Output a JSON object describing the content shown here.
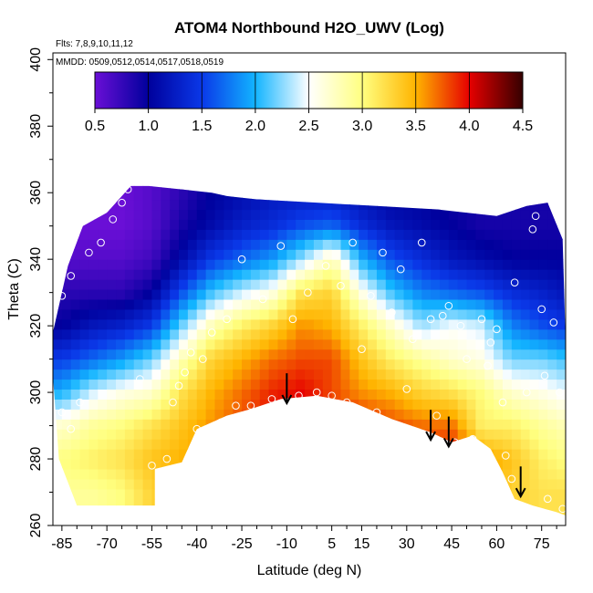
{
  "chart_data": {
    "type": "heatmap",
    "title": "ATOM4 Northbound H2O_UWV (Log)",
    "flights_label": "Flts: 7,8,9,10,11,12",
    "dates_label": "MMDD: 0509,0512,0514,0517,0518,0519",
    "xlabel": "Latitude (deg N)",
    "ylabel": "Theta (C)",
    "xlim": [
      -88,
      83
    ],
    "ylim": [
      260,
      402
    ],
    "xticks": [
      -85,
      -70,
      -55,
      -40,
      -25,
      -10,
      5,
      15,
      30,
      45,
      60,
      75
    ],
    "xtick_labels": [
      "-85",
      "-70",
      "-55",
      "-40",
      "-25",
      "-10",
      "5",
      "15",
      "30",
      "45",
      "60",
      "75"
    ],
    "yticks": [
      260,
      280,
      300,
      320,
      340,
      360,
      380,
      400
    ],
    "ytick_labels": [
      "260",
      "280",
      "300",
      "320",
      "340",
      "360",
      "380",
      "400"
    ],
    "colorbar": {
      "min": 0.5,
      "max": 4.5,
      "ticks": [
        0.5,
        1.0,
        1.5,
        2.0,
        2.5,
        3.0,
        3.5,
        4.0,
        4.5
      ],
      "tick_labels": [
        "0.5",
        "1.0",
        "1.5",
        "2.0",
        "2.5",
        "3.0",
        "3.5",
        "4.0",
        "4.5"
      ],
      "colors": [
        "#6a0fd6",
        "#00009c",
        "#0a38e8",
        "#12b4ff",
        "#ffffff",
        "#ffff80",
        "#ffb400",
        "#e60000",
        "#350000"
      ]
    },
    "field": {
      "description": "interpolated log10 water vapour field (approximate)",
      "lat_axis": [
        -85,
        -75,
        -65,
        -55,
        -45,
        -35,
        -25,
        -15,
        -5,
        5,
        15,
        25,
        35,
        45,
        55,
        65,
        75,
        82
      ],
      "theta_axis": [
        270,
        280,
        290,
        300,
        310,
        320,
        330,
        340,
        350,
        360
      ],
      "values": [
        [
          2.9,
          3.0,
          2.7,
          2.0,
          1.5,
          1.0,
          0.8,
          0.6,
          0.5,
          0.5
        ],
        [
          2.9,
          3.1,
          2.9,
          2.4,
          1.7,
          1.2,
          0.8,
          0.6,
          0.5,
          0.5
        ],
        [
          3.0,
          3.2,
          3.0,
          2.6,
          1.9,
          1.3,
          0.8,
          0.6,
          0.5,
          0.5
        ],
        [
          3.3,
          3.4,
          3.2,
          2.7,
          2.2,
          1.5,
          1.0,
          0.7,
          0.6,
          0.6
        ],
        [
          3.4,
          3.5,
          3.4,
          3.2,
          2.8,
          2.2,
          1.6,
          1.1,
          0.9,
          0.8
        ],
        [
          3.5,
          3.6,
          3.6,
          3.5,
          3.3,
          2.8,
          2.1,
          1.5,
          1.1,
          1.0
        ],
        [
          3.6,
          3.8,
          3.8,
          3.7,
          3.5,
          3.1,
          2.4,
          1.7,
          1.3,
          1.1
        ],
        [
          3.7,
          4.0,
          4.0,
          3.9,
          3.7,
          3.3,
          2.6,
          1.9,
          1.4,
          1.2
        ],
        [
          3.8,
          4.1,
          4.1,
          4.0,
          3.8,
          3.6,
          3.2,
          2.3,
          1.6,
          1.2
        ],
        [
          3.8,
          4.0,
          4.0,
          3.8,
          3.8,
          3.5,
          3.3,
          2.8,
          1.7,
          1.2
        ],
        [
          3.7,
          3.9,
          3.9,
          3.6,
          3.4,
          3.1,
          2.6,
          2.0,
          1.4,
          1.1
        ],
        [
          3.6,
          3.8,
          3.8,
          3.5,
          3.1,
          2.7,
          2.1,
          1.6,
          1.2,
          1.0
        ],
        [
          3.6,
          3.9,
          3.7,
          3.3,
          2.9,
          2.3,
          1.8,
          1.4,
          1.1,
          1.0
        ],
        [
          3.7,
          4.0,
          3.7,
          3.2,
          2.7,
          2.5,
          1.7,
          1.2,
          1.0,
          0.9
        ],
        [
          3.5,
          3.6,
          3.1,
          3.0,
          2.6,
          2.4,
          1.6,
          1.1,
          0.9,
          0.9
        ],
        [
          3.3,
          3.4,
          3.1,
          2.7,
          2.2,
          1.8,
          1.4,
          1.0,
          0.9,
          0.9
        ],
        [
          3.2,
          3.1,
          2.9,
          2.6,
          2.2,
          1.6,
          1.3,
          1.0,
          0.9,
          0.9
        ],
        [
          3.2,
          3.0,
          2.8,
          2.5,
          2.1,
          1.5,
          1.2,
          1.0,
          0.9,
          0.9
        ]
      ]
    },
    "upper_boundary": [
      {
        "lat": -88,
        "theta": 318
      },
      {
        "lat": -83,
        "theta": 338
      },
      {
        "lat": -78,
        "theta": 350
      },
      {
        "lat": -70,
        "theta": 354
      },
      {
        "lat": -62,
        "theta": 362
      },
      {
        "lat": -56,
        "theta": 362
      },
      {
        "lat": -45,
        "theta": 361
      },
      {
        "lat": -35,
        "theta": 360
      },
      {
        "lat": -30,
        "theta": 359
      },
      {
        "lat": -20,
        "theta": 358
      },
      {
        "lat": 0,
        "theta": 357
      },
      {
        "lat": 20,
        "theta": 356
      },
      {
        "lat": 40,
        "theta": 355
      },
      {
        "lat": 60,
        "theta": 353
      },
      {
        "lat": 70,
        "theta": 356
      },
      {
        "lat": 77,
        "theta": 357
      },
      {
        "lat": 82,
        "theta": 346
      },
      {
        "lat": 83,
        "theta": 315
      }
    ],
    "lower_boundary": [
      {
        "lat": -88,
        "theta": 305
      },
      {
        "lat": -86,
        "theta": 280
      },
      {
        "lat": -80,
        "theta": 266
      },
      {
        "lat": -70,
        "theta": 266
      },
      {
        "lat": -54,
        "theta": 266
      },
      {
        "lat": -54,
        "theta": 277
      },
      {
        "lat": -45,
        "theta": 279
      },
      {
        "lat": -40,
        "theta": 289
      },
      {
        "lat": -30,
        "theta": 293
      },
      {
        "lat": -22,
        "theta": 295
      },
      {
        "lat": -12,
        "theta": 298
      },
      {
        "lat": 0,
        "theta": 299
      },
      {
        "lat": 12,
        "theta": 297
      },
      {
        "lat": 25,
        "theta": 292
      },
      {
        "lat": 38,
        "theta": 288
      },
      {
        "lat": 45,
        "theta": 285
      },
      {
        "lat": 52,
        "theta": 287
      },
      {
        "lat": 58,
        "theta": 283
      },
      {
        "lat": 62,
        "theta": 276
      },
      {
        "lat": 66,
        "theta": 268
      },
      {
        "lat": 72,
        "theta": 266
      },
      {
        "lat": 80,
        "theta": 264
      },
      {
        "lat": 83,
        "theta": 263
      }
    ],
    "observations": [
      {
        "lat": -85,
        "theta": 294
      },
      {
        "lat": -82,
        "theta": 289
      },
      {
        "lat": -79,
        "theta": 297
      },
      {
        "lat": -85,
        "theta": 329
      },
      {
        "lat": -82,
        "theta": 335
      },
      {
        "lat": -76,
        "theta": 342
      },
      {
        "lat": -72,
        "theta": 345
      },
      {
        "lat": -68,
        "theta": 352
      },
      {
        "lat": -65,
        "theta": 357
      },
      {
        "lat": -63,
        "theta": 361
      },
      {
        "lat": -59,
        "theta": 304
      },
      {
        "lat": -55,
        "theta": 278
      },
      {
        "lat": -52,
        "theta": 276
      },
      {
        "lat": -50,
        "theta": 280
      },
      {
        "lat": -48,
        "theta": 297
      },
      {
        "lat": -46,
        "theta": 302
      },
      {
        "lat": -44,
        "theta": 306
      },
      {
        "lat": -42,
        "theta": 312
      },
      {
        "lat": -40,
        "theta": 289
      },
      {
        "lat": -38,
        "theta": 310
      },
      {
        "lat": -35,
        "theta": 318
      },
      {
        "lat": -32,
        "theta": 291
      },
      {
        "lat": -30,
        "theta": 322
      },
      {
        "lat": -27,
        "theta": 296
      },
      {
        "lat": -25,
        "theta": 340
      },
      {
        "lat": -22,
        "theta": 296
      },
      {
        "lat": -18,
        "theta": 328
      },
      {
        "lat": -15,
        "theta": 298
      },
      {
        "lat": -12,
        "theta": 344
      },
      {
        "lat": -8,
        "theta": 322
      },
      {
        "lat": -6,
        "theta": 299
      },
      {
        "lat": -3,
        "theta": 330
      },
      {
        "lat": 0,
        "theta": 300
      },
      {
        "lat": 3,
        "theta": 338
      },
      {
        "lat": 5,
        "theta": 299
      },
      {
        "lat": 8,
        "theta": 332
      },
      {
        "lat": 10,
        "theta": 297
      },
      {
        "lat": 12,
        "theta": 345
      },
      {
        "lat": 15,
        "theta": 313
      },
      {
        "lat": 18,
        "theta": 329
      },
      {
        "lat": 20,
        "theta": 294
      },
      {
        "lat": 22,
        "theta": 342
      },
      {
        "lat": 25,
        "theta": 324
      },
      {
        "lat": 28,
        "theta": 337
      },
      {
        "lat": 30,
        "theta": 301
      },
      {
        "lat": 32,
        "theta": 316
      },
      {
        "lat": 35,
        "theta": 345
      },
      {
        "lat": 38,
        "theta": 322
      },
      {
        "lat": 40,
        "theta": 293
      },
      {
        "lat": 42,
        "theta": 323
      },
      {
        "lat": 44,
        "theta": 326
      },
      {
        "lat": 46,
        "theta": 285
      },
      {
        "lat": 48,
        "theta": 320
      },
      {
        "lat": 50,
        "theta": 310
      },
      {
        "lat": 52,
        "theta": 286
      },
      {
        "lat": 55,
        "theta": 322
      },
      {
        "lat": 57,
        "theta": 308
      },
      {
        "lat": 58,
        "theta": 315
      },
      {
        "lat": 60,
        "theta": 319
      },
      {
        "lat": 62,
        "theta": 297
      },
      {
        "lat": 63,
        "theta": 281
      },
      {
        "lat": 65,
        "theta": 274
      },
      {
        "lat": 66,
        "theta": 333
      },
      {
        "lat": 68,
        "theta": 266
      },
      {
        "lat": 70,
        "theta": 300
      },
      {
        "lat": 72,
        "theta": 349
      },
      {
        "lat": 73,
        "theta": 353
      },
      {
        "lat": 75,
        "theta": 325
      },
      {
        "lat": 76,
        "theta": 305
      },
      {
        "lat": 77,
        "theta": 268
      },
      {
        "lat": 79,
        "theta": 321
      },
      {
        "lat": 81,
        "theta": 300
      },
      {
        "lat": 82,
        "theta": 265
      }
    ],
    "arrows": [
      {
        "lat": -10,
        "theta_top": 303,
        "theta_bottom": 297
      },
      {
        "lat": 38,
        "theta_top": 292,
        "theta_bottom": 286
      },
      {
        "lat": 44,
        "theta_top": 290,
        "theta_bottom": 284
      },
      {
        "lat": 68,
        "theta_top": 275,
        "theta_bottom": 269
      }
    ]
  }
}
